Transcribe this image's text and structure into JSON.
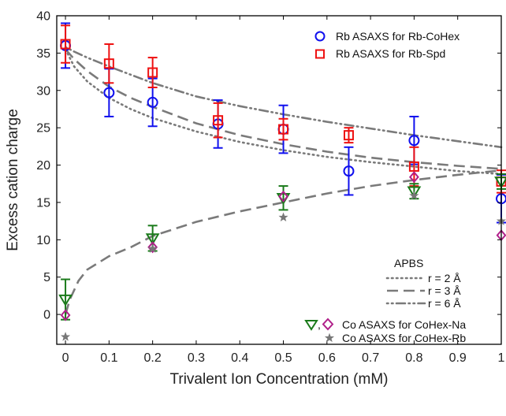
{
  "chart_data": {
    "type": "scatter",
    "xlabel": "Trivalent Ion Concentration (mM)",
    "ylabel": "Excess cation charge",
    "xlim": [
      -0.02,
      1.0
    ],
    "ylim": [
      -4,
      40
    ],
    "x_ticks": [
      0,
      0.1,
      0.2,
      0.3,
      0.4,
      0.5,
      0.6,
      0.7,
      0.8,
      0.9,
      1
    ],
    "x_tick_labels": [
      "0",
      "0.1",
      "0.2",
      "0.3",
      "0.4",
      "0.5",
      "0.6",
      "0.7",
      "0.8",
      "0.9",
      "1"
    ],
    "y_ticks": [
      0,
      5,
      10,
      15,
      20,
      25,
      30,
      35,
      40
    ],
    "y_tick_labels": [
      "0",
      "5",
      "10",
      "15",
      "20",
      "25",
      "30",
      "35",
      "40"
    ],
    "grid": false,
    "legend_top": {
      "placement": "top-right",
      "entries": [
        {
          "label": "Rb ASAXS for Rb-CoHex",
          "marker": "circle",
          "color": "#1010ee"
        },
        {
          "label": "Rb ASAXS for Rb-Spd",
          "marker": "square",
          "color": "#ee1111"
        }
      ]
    },
    "legend_apbs": {
      "placement": "right",
      "title": "APBS",
      "entries": [
        {
          "label": "r = 2 Å",
          "style": "dotted"
        },
        {
          "label": "r = 3 Å",
          "style": "dashed"
        },
        {
          "label": "r = 6 Å",
          "style": "dash-dot"
        }
      ]
    },
    "legend_bottom": {
      "placement": "bottom-right",
      "entries": [
        {
          "label": "Co ASAXS for CoHex-Na",
          "marker": "triangle-down+diamond",
          "color": "#1a7a1a",
          "color2": "#b0208a"
        },
        {
          "label": "Co ASAXS for CoHex-Rb",
          "marker": "star",
          "color": "#777777"
        }
      ]
    },
    "series": [
      {
        "name": "Rb ASAXS for Rb-CoHex",
        "marker": "circle",
        "color": "#1010ee",
        "points": [
          {
            "x": 0,
            "y": 36.0,
            "err": 3.0
          },
          {
            "x": 0.1,
            "y": 29.7,
            "err": 3.2
          },
          {
            "x": 0.2,
            "y": 28.4,
            "err": 3.2
          },
          {
            "x": 0.35,
            "y": 25.5,
            "err": 3.2
          },
          {
            "x": 0.5,
            "y": 24.8,
            "err": 3.2
          },
          {
            "x": 0.65,
            "y": 19.2,
            "err": 3.2
          },
          {
            "x": 0.8,
            "y": 23.3,
            "err": 3.2
          },
          {
            "x": 1.0,
            "y": 15.5,
            "err": 3.2
          }
        ]
      },
      {
        "name": "Rb ASAXS for Rb-Spd",
        "marker": "square",
        "color": "#ee1111",
        "points": [
          {
            "x": 0,
            "y": 36.2,
            "err": 2.5
          },
          {
            "x": 0.1,
            "y": 33.6,
            "err": 2.6
          },
          {
            "x": 0.2,
            "y": 32.4,
            "err": 2.0
          },
          {
            "x": 0.35,
            "y": 26.0,
            "err": 2.3
          },
          {
            "x": 0.5,
            "y": 24.8,
            "err": 1.4
          },
          {
            "x": 0.65,
            "y": 24.0,
            "err": 1.0
          },
          {
            "x": 0.8,
            "y": 19.8,
            "err": 2.6
          },
          {
            "x": 1.0,
            "y": 17.8,
            "err": 1.5
          }
        ]
      },
      {
        "name": "Co ASAXS for CoHex-Na",
        "marker": "triangle-down",
        "color": "#1a7a1a",
        "points": [
          {
            "x": 0,
            "y": 2.0,
            "err": 2.7
          },
          {
            "x": 0.2,
            "y": 10.2,
            "err": 1.7
          },
          {
            "x": 0.5,
            "y": 15.6,
            "err": 1.6
          },
          {
            "x": 0.8,
            "y": 16.5,
            "err": 1.0
          },
          {
            "x": 1.0,
            "y": 17.8,
            "err": 1.0
          }
        ]
      },
      {
        "name": "Co ASAXS for CoHex-Na (diamond)",
        "marker": "diamond",
        "color": "#b0208a",
        "points": [
          {
            "x": 0,
            "y": -0.1
          },
          {
            "x": 0.2,
            "y": 9.0
          },
          {
            "x": 0.5,
            "y": 15.8
          },
          {
            "x": 0.8,
            "y": 18.4
          },
          {
            "x": 1.0,
            "y": 10.6
          }
        ]
      },
      {
        "name": "Co ASAXS for CoHex-Rb",
        "marker": "star",
        "color": "#777777",
        "points": [
          {
            "x": 0,
            "y": -3.0
          },
          {
            "x": 0.2,
            "y": 8.8
          },
          {
            "x": 0.5,
            "y": 13.0
          },
          {
            "x": 0.8,
            "y": 15.9
          },
          {
            "x": 1.0,
            "y": 12.5
          }
        ]
      }
    ],
    "curves": [
      {
        "name": "r = 2 Å (Rb)",
        "style": "dotted",
        "x": [
          0,
          0.02,
          0.05,
          0.1,
          0.15,
          0.2,
          0.3,
          0.4,
          0.5,
          0.6,
          0.7,
          0.8,
          0.9,
          1.0
        ],
        "y": [
          35.5,
          33.2,
          31.2,
          29.0,
          27.5,
          26.3,
          24.5,
          23.1,
          22.0,
          21.1,
          20.4,
          19.8,
          19.2,
          18.8
        ]
      },
      {
        "name": "r = 3 Å (Rb)",
        "style": "dashed",
        "x": [
          0,
          0.02,
          0.05,
          0.1,
          0.15,
          0.2,
          0.3,
          0.4,
          0.5,
          0.6,
          0.7,
          0.8,
          0.9,
          1.0
        ],
        "y": [
          35.5,
          34.2,
          32.6,
          30.5,
          29.0,
          27.8,
          25.6,
          24.0,
          22.8,
          21.8,
          21.0,
          20.4,
          19.9,
          19.5
        ]
      },
      {
        "name": "r = 6 Å (Rb)",
        "style": "dash-dot",
        "x": [
          0,
          0.02,
          0.05,
          0.1,
          0.2,
          0.3,
          0.4,
          0.5,
          0.6,
          0.7,
          0.8,
          0.9,
          1.0
        ],
        "y": [
          35.8,
          35.2,
          34.4,
          33.2,
          31.0,
          29.2,
          27.9,
          26.8,
          25.8,
          24.9,
          24.0,
          23.2,
          22.4
        ]
      },
      {
        "name": "r = 3 Å (Co)",
        "style": "dashed",
        "x": [
          0,
          0.01,
          0.03,
          0.05,
          0.1,
          0.15,
          0.2,
          0.3,
          0.4,
          0.5,
          0.6,
          0.7,
          0.8,
          0.9,
          1.0
        ],
        "y": [
          0.0,
          2.0,
          4.5,
          6.0,
          7.8,
          9.0,
          10.5,
          12.4,
          13.8,
          15.0,
          16.2,
          17.2,
          18.0,
          18.7,
          19.3
        ]
      }
    ]
  }
}
